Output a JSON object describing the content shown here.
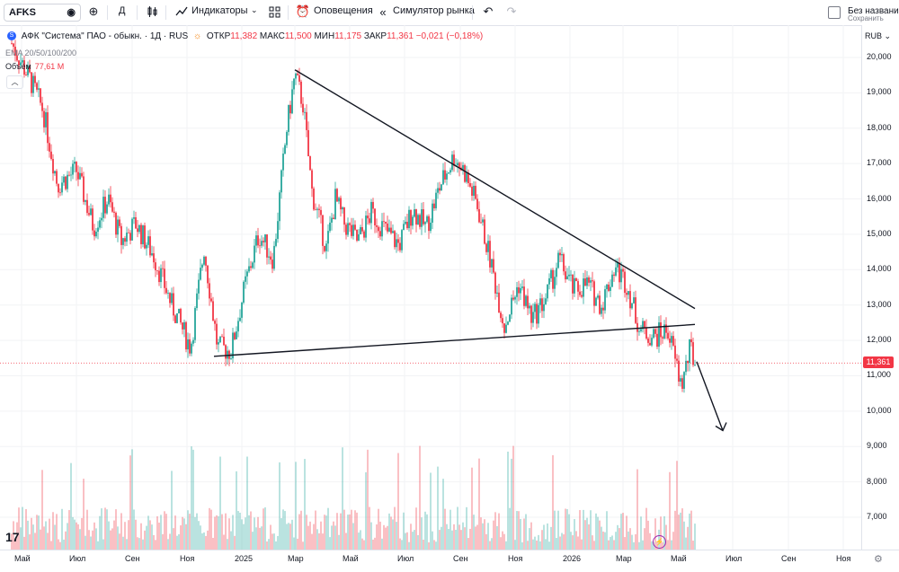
{
  "toolbar": {
    "symbol": "AFKS",
    "interval": "Д",
    "indicators_label": "Индикаторы",
    "alerts_label": "Оповещения",
    "replay_label": "Симулятор рынка",
    "layout_name": "Без названи",
    "layout_status": "Сохранить"
  },
  "legend": {
    "title": "АФК \"Система\" ПАО - обыкн. · 1Д · RUS",
    "open_label": "ОТКР",
    "open_value": "11,382",
    "high_label": "МАКС",
    "high_value": "11,500",
    "low_label": "МИН",
    "low_value": "11,175",
    "close_label": "ЗАКР",
    "close_value": "11,361",
    "change": "−0,021 (−0,18%)",
    "ema_label": "EMA 20/50/100/200",
    "volume_label": "Объём",
    "volume_value": "77,61 М",
    "collapse_icon": "chevron-up-icon"
  },
  "price_axis": {
    "currency": "RUB",
    "ticks": [
      "20,000",
      "19,000",
      "18,000",
      "17,000",
      "16,000",
      "15,000",
      "14,000",
      "13,000",
      "12,000",
      "11,000",
      "10,000",
      "9,000",
      "8,000",
      "7,000"
    ],
    "tick_values": [
      20,
      19,
      18,
      17,
      16,
      15,
      14,
      13,
      12,
      11,
      10,
      9,
      8,
      7
    ],
    "current_price": "11,361",
    "current_value": 11.361
  },
  "time_axis": {
    "labels": [
      "Май",
      "Июл",
      "Сен",
      "Ноя",
      "2025",
      "Мар",
      "Май",
      "Июл",
      "Сен",
      "Ноя",
      "2026",
      "Мар",
      "Май",
      "Июл",
      "Сен",
      "Ноя"
    ]
  },
  "colors": {
    "up": "#26a69a",
    "down": "#f23645",
    "accent": "#2962ff",
    "line": "#131722"
  },
  "drawings": {
    "upper_trendline": [
      [
        "2025-03-01",
        19.65
      ],
      [
        "2026-05-20",
        12.9
      ]
    ],
    "lower_trendline": [
      [
        "2024-12-01",
        11.55
      ],
      [
        "2026-05-20",
        12.45
      ]
    ],
    "arrow": [
      [
        "2026-05-22",
        11.4
      ],
      [
        "2026-06-20",
        9.45
      ]
    ]
  },
  "chart_data": {
    "type": "candlestick",
    "x_range": [
      "2024-04-15",
      "2026-12-31"
    ],
    "ylim": [
      6.0,
      20.5
    ],
    "price_series": [
      [
        "2024-04-20",
        20.4
      ],
      [
        "2024-05-10",
        19.4
      ],
      [
        "2024-05-25",
        18.5
      ],
      [
        "2024-06-10",
        16.4
      ],
      [
        "2024-07-01",
        16.8
      ],
      [
        "2024-07-20",
        15.2
      ],
      [
        "2024-08-05",
        16.0
      ],
      [
        "2024-08-20",
        14.8
      ],
      [
        "2024-09-05",
        15.3
      ],
      [
        "2024-09-25",
        14.4
      ],
      [
        "2024-10-15",
        13.0
      ],
      [
        "2024-11-05",
        11.8
      ],
      [
        "2024-11-20",
        14.6
      ],
      [
        "2024-12-05",
        11.8
      ],
      [
        "2024-12-20",
        11.7
      ],
      [
        "2025-01-05",
        13.6
      ],
      [
        "2025-01-20",
        15.0
      ],
      [
        "2025-02-05",
        14.3
      ],
      [
        "2025-02-20",
        18.0
      ],
      [
        "2025-03-01",
        19.5
      ],
      [
        "2025-03-10",
        18.7
      ],
      [
        "2025-03-20",
        16.2
      ],
      [
        "2025-04-05",
        14.6
      ],
      [
        "2025-04-15",
        16.0
      ],
      [
        "2025-04-25",
        15.3
      ],
      [
        "2025-05-10",
        14.8
      ],
      [
        "2025-05-25",
        15.6
      ],
      [
        "2025-06-10",
        15.1
      ],
      [
        "2025-06-25",
        14.7
      ],
      [
        "2025-07-10",
        15.7
      ],
      [
        "2025-07-25",
        15.2
      ],
      [
        "2025-08-10",
        16.4
      ],
      [
        "2025-08-25",
        17.2
      ],
      [
        "2025-09-05",
        16.8
      ],
      [
        "2025-09-20",
        15.8
      ],
      [
        "2025-10-05",
        14.2
      ],
      [
        "2025-10-20",
        12.4
      ],
      [
        "2025-11-05",
        13.6
      ],
      [
        "2025-11-20",
        12.6
      ],
      [
        "2025-12-05",
        13.2
      ],
      [
        "2025-12-20",
        14.3
      ],
      [
        "2026-01-05",
        13.4
      ],
      [
        "2026-01-20",
        13.6
      ],
      [
        "2026-02-05",
        13.0
      ],
      [
        "2026-02-20",
        14.1
      ],
      [
        "2026-03-05",
        13.6
      ],
      [
        "2026-03-20",
        12.3
      ],
      [
        "2026-04-05",
        12.1
      ],
      [
        "2026-04-20",
        12.3
      ],
      [
        "2026-05-05",
        10.7
      ],
      [
        "2026-05-15",
        11.8
      ],
      [
        "2026-05-20",
        11.36
      ]
    ]
  }
}
